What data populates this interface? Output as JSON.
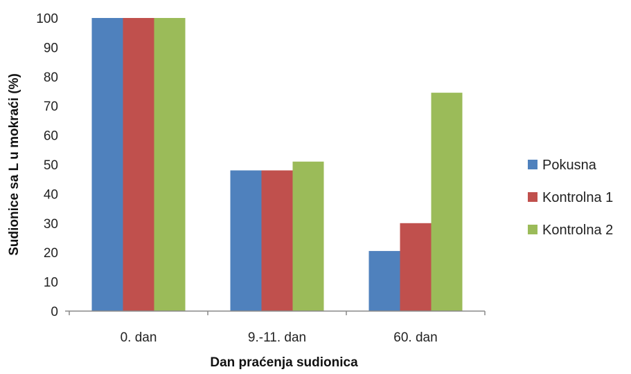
{
  "chart_data": {
    "type": "bar",
    "categories": [
      "0. dan",
      "9.-11. dan",
      "60. dan"
    ],
    "series": [
      {
        "name": "Pokusna",
        "values": [
          100,
          48,
          20.5
        ],
        "color": "#4F81BD"
      },
      {
        "name": "Kontrolna 1",
        "values": [
          100,
          48,
          30
        ],
        "color": "#C0504D"
      },
      {
        "name": "Kontrolna 2",
        "values": [
          100,
          51,
          74.5
        ],
        "color": "#9BBB59"
      }
    ],
    "xlabel": "Dan praćenja sudionica",
    "ylabel": "Sudionice sa L u  mokraći (%)",
    "ylim": [
      0,
      100
    ],
    "yticks": [
      0,
      10,
      20,
      30,
      40,
      50,
      60,
      70,
      80,
      90,
      100
    ],
    "grid": false,
    "legend": "right"
  }
}
